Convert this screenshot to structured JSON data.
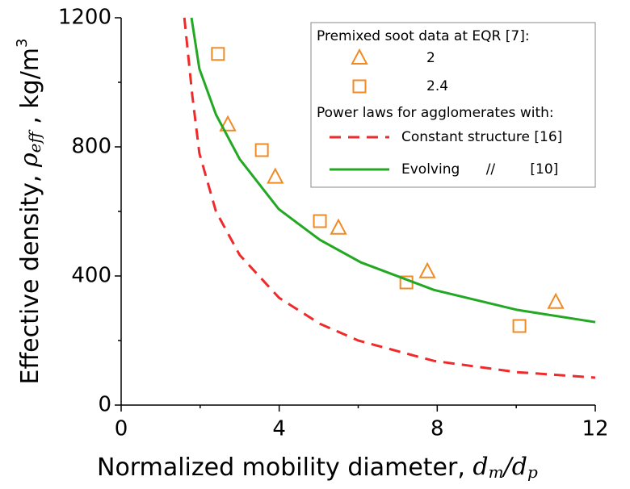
{
  "chart_data": {
    "type": "line",
    "xlabel": [
      "Normalized mobility diameter, ",
      "d",
      "m",
      "/",
      "d",
      "p"
    ],
    "ylabel": [
      "Effective density, ",
      "ρ",
      "eff",
      " , kg/m",
      "3"
    ],
    "xlim": [
      0,
      12
    ],
    "ylim": [
      0,
      1200
    ],
    "xticks": [
      0,
      4,
      8,
      12
    ],
    "yticks": [
      0,
      400,
      800,
      1200
    ],
    "xminorticks": [
      2,
      6,
      10
    ],
    "yminorticks": [
      200,
      600,
      1000
    ],
    "legend_marker_title": "Premixed soot data at EQR [7]:",
    "legend_line_title": "Power laws for agglomerates with:",
    "series": [
      {
        "name": "2",
        "color": "#f08a24",
        "marker": "triangle",
        "linestyle": "none",
        "x": [
          2.7,
          3.9,
          5.5,
          7.75,
          11.0
        ],
        "values": [
          868,
          706,
          548,
          413,
          318
        ]
      },
      {
        "name": "2.4",
        "color": "#f08a24",
        "marker": "square",
        "linestyle": "none",
        "x": [
          2.45,
          3.56,
          5.03,
          7.22,
          10.08
        ],
        "values": [
          1088,
          790,
          570,
          380,
          245
        ]
      },
      {
        "name": "Constant structure [16]",
        "color": "#ee2a2a",
        "marker": "none",
        "linestyle": "dashed",
        "x": [
          1.6,
          1.8,
          1.98,
          2.4,
          3.0,
          4.0,
          5.03,
          6.0,
          7.91,
          10.02,
          12.0
        ],
        "values": [
          1200,
          960,
          780,
          600,
          465,
          332,
          252,
          200,
          137,
          102,
          85
        ]
      },
      {
        "name": "Evolving      //        [10]",
        "color": "#22a822",
        "marker": "none",
        "linestyle": "solid",
        "x": [
          1.78,
          1.98,
          2.4,
          3.0,
          3.99,
          5.03,
          6.07,
          7.91,
          10.02,
          12.0
        ],
        "values": [
          1200,
          1042,
          900,
          762,
          607,
          512,
          442,
          357,
          295,
          257
        ]
      }
    ]
  }
}
